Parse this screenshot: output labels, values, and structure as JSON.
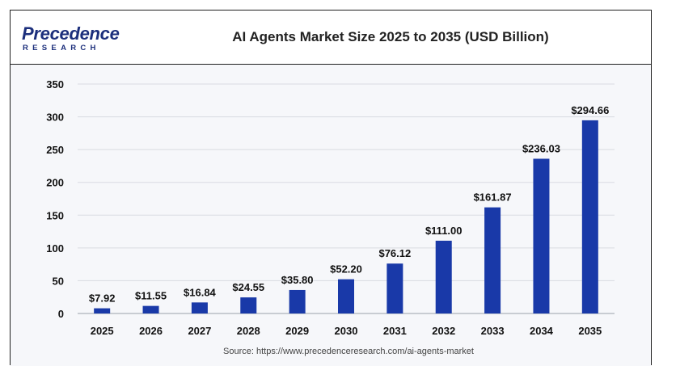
{
  "header": {
    "logo_main": "Precedence",
    "logo_sub": "RESEARCH",
    "title": "AI Agents Market Size 2025 to 2035 (USD Billion)"
  },
  "source": "Source: https://www.precedenceresearch.com/ai-agents-market",
  "colors": {
    "bar": "#1939a8",
    "brand": "#1c2f7c",
    "grid": "#d9dbe1"
  },
  "chart_data": {
    "type": "bar",
    "title": "AI Agents Market Size 2025 to 2035 (USD Billion)",
    "xlabel": "",
    "ylabel": "",
    "ylim": [
      0,
      350
    ],
    "yticks": [
      "0",
      "50",
      "100",
      "150",
      "200",
      "250",
      "300",
      "350"
    ],
    "grid": true,
    "categories": [
      "2025",
      "2026",
      "2027",
      "2028",
      "2029",
      "2030",
      "2031",
      "2032",
      "2033",
      "2034",
      "2035"
    ],
    "values": [
      7.92,
      11.55,
      16.84,
      24.55,
      35.8,
      52.2,
      76.12,
      111.0,
      161.87,
      236.03,
      294.66
    ],
    "data_labels": [
      "$7.92",
      "$11.55",
      "$16.84",
      "$24.55",
      "$35.80",
      "$52.20",
      "$76.12",
      "$111.00",
      "$161.87",
      "$236.03",
      "$294.66"
    ]
  }
}
